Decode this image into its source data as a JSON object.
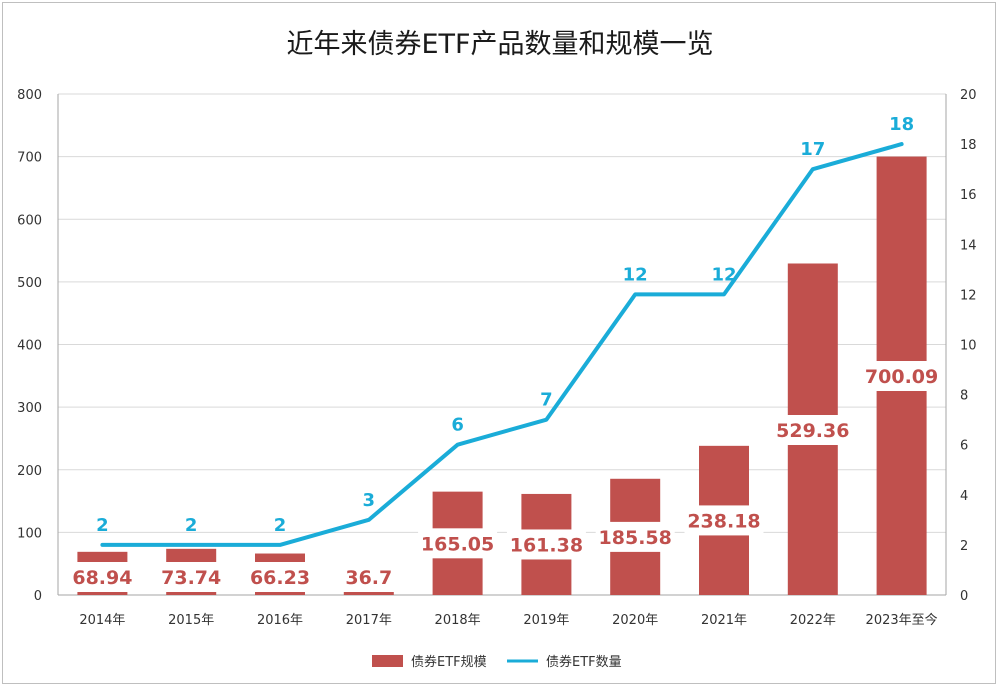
{
  "chart_data": {
    "type": "bar",
    "title": "近年来债券ETF产品数量和规模一览",
    "categories": [
      "2014年",
      "2015年",
      "2016年",
      "2017年",
      "2018年",
      "2019年",
      "2020年",
      "2021年",
      "2022年",
      "2023年至今"
    ],
    "series": [
      {
        "name": "债券ETF规模",
        "type": "bar",
        "axis": "left",
        "values": [
          68.94,
          73.74,
          66.23,
          36.7,
          165.05,
          161.38,
          185.58,
          238.18,
          529.36,
          700.09
        ],
        "color": "#c0504d"
      },
      {
        "name": "债券ETF数量",
        "type": "line",
        "axis": "right",
        "values": [
          2,
          2,
          2,
          3,
          6,
          7,
          12,
          12,
          17,
          18
        ],
        "color": "#1aacd8"
      }
    ],
    "y_left": {
      "min": 0,
      "max": 800,
      "step": 100,
      "ticks": [
        "0",
        "100",
        "200",
        "300",
        "400",
        "500",
        "600",
        "700",
        "800"
      ]
    },
    "y_right": {
      "min": 0,
      "max": 20,
      "step": 2,
      "ticks": [
        "0",
        "2",
        "4",
        "6",
        "8",
        "10",
        "12",
        "14",
        "16",
        "18",
        "20"
      ]
    },
    "grid": true,
    "legend_position": "bottom",
    "bar_labels": [
      "68.94",
      "73.74",
      "66.23",
      "36.7",
      "165.05",
      "161.38",
      "185.58",
      "238.18",
      "529.36",
      "700.09"
    ],
    "line_labels": [
      "2",
      "2",
      "2",
      "3",
      "6",
      "7",
      "12",
      "12",
      "17",
      "18"
    ]
  }
}
